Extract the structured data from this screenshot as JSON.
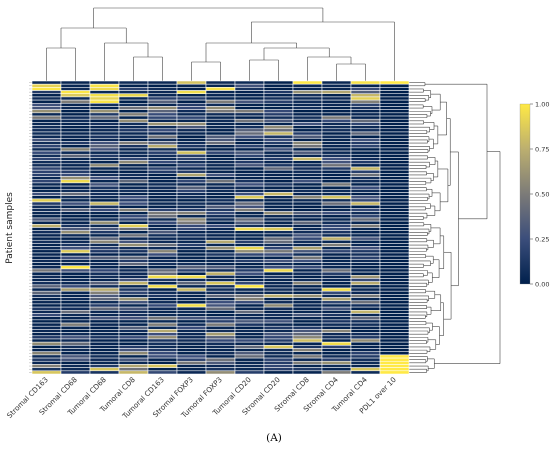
{
  "chart_data": {
    "type": "heatmap",
    "title": "",
    "ylabel": "Patient samples",
    "panel_label": "(A)",
    "columns": [
      "Stromal CD163",
      "Stromal CD68",
      "Tumoral CD68",
      "Tumoral CD8",
      "Tumoral CD163",
      "Stromal FOXP3",
      "Tumoral FOXP3",
      "Tumoral CD20",
      "Stromal CD20",
      "Stromal CD8",
      "Stromal CD4",
      "Tumoral CD4",
      "PDL1 over 10"
    ],
    "n_rows": 92,
    "value_range": [
      0,
      1
    ],
    "colorscale": [
      "#00204c",
      "#3b4e7b",
      "#7c7b78",
      "#bcaf6f",
      "#ffe945"
    ],
    "colorbar": {
      "ticks": [
        0,
        0.25,
        0.5,
        0.75,
        1
      ],
      "tick_labels": [
        "0.00",
        "0.25",
        "0.50",
        "0.75",
        "1.00"
      ]
    },
    "column_dendrogram": true,
    "row_dendrogram": true,
    "notes": "Per-cell values estimated from color; predominantly low (navy) with scattered high (yellow) cells. PDL1 over 10 is 1.00 for the first row and the last 6 rows, 0 otherwise."
  }
}
